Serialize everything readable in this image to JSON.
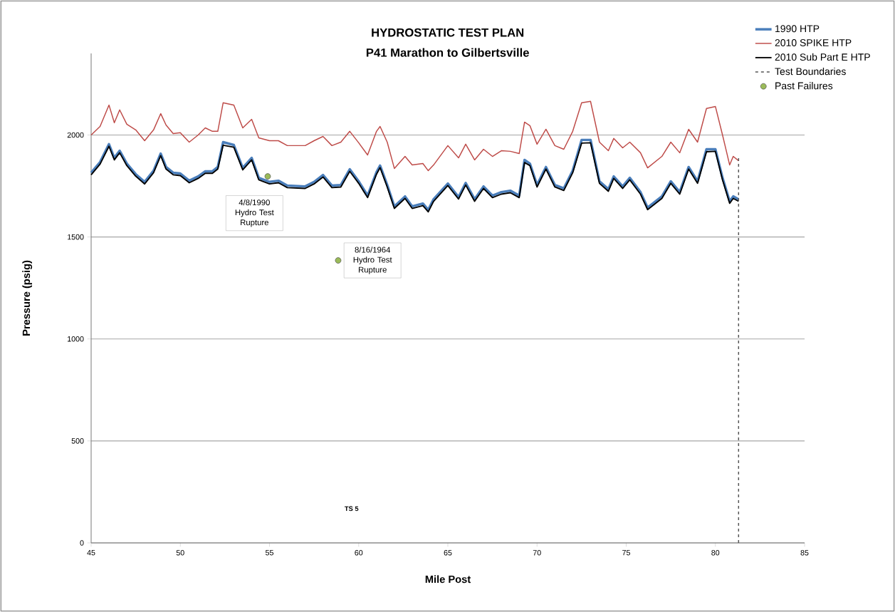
{
  "chart_data": {
    "type": "line",
    "title": "HYDROSTATIC TEST PLAN",
    "subtitle": "P41 Marathon to Gilbertsville",
    "xlabel": "Mile Post",
    "ylabel": "Pressure (psig)",
    "xlim": [
      45,
      85
    ],
    "ylim": [
      0,
      2400
    ],
    "xticks": [
      45,
      50,
      55,
      60,
      65,
      70,
      75,
      80,
      85
    ],
    "yticks": [
      0,
      500,
      1000,
      1500,
      2000
    ],
    "grid": "y",
    "legend": "top right",
    "marker": "none",
    "x": [
      45,
      45.5,
      46,
      46.3,
      46.6,
      47,
      47.5,
      48,
      48.5,
      48.9,
      49.2,
      49.6,
      50,
      50.5,
      51,
      51.4,
      51.8,
      52.1,
      52.4,
      53,
      53.5,
      54,
      54.4,
      55,
      55.5,
      56,
      57,
      57.5,
      58,
      58.5,
      59,
      59.5,
      60,
      60.5,
      61,
      61.2,
      61.6,
      62,
      62.6,
      63,
      63.6,
      63.9,
      64.2,
      65,
      65.6,
      66,
      66.5,
      67,
      67.5,
      68,
      68.5,
      69,
      69.3,
      69.6,
      70,
      70.5,
      71,
      71.5,
      72,
      72.5,
      73,
      73.5,
      74,
      74.3,
      74.8,
      75.2,
      75.8,
      76.2,
      77,
      77.5,
      78,
      78.5,
      79,
      79.5,
      80,
      80.4,
      80.8,
      81,
      81.3
    ],
    "series": [
      {
        "name": "1990 HTP",
        "color": "#4a7ebb",
        "values": [
          1815,
          1867,
          1955,
          1888,
          1923,
          1860,
          1808,
          1770,
          1825,
          1909,
          1843,
          1815,
          1811,
          1776,
          1797,
          1822,
          1822,
          1843,
          1965,
          1951,
          1839,
          1888,
          1790,
          1770,
          1776,
          1752,
          1748,
          1770,
          1804,
          1752,
          1755,
          1832,
          1773,
          1703,
          1818,
          1850,
          1755,
          1650,
          1699,
          1650,
          1664,
          1633,
          1685,
          1762,
          1696,
          1765,
          1685,
          1748,
          1703,
          1720,
          1727,
          1703,
          1878,
          1860,
          1755,
          1843,
          1755,
          1738,
          1825,
          1976,
          1976,
          1773,
          1734,
          1797,
          1748,
          1790,
          1720,
          1644,
          1699,
          1773,
          1720,
          1843,
          1773,
          1930,
          1930,
          1790,
          1675,
          1699,
          1685
        ]
      },
      {
        "name": "2010 SPIKE HTP",
        "color": "#be4b48",
        "values": [
          2000,
          2042,
          2147,
          2060,
          2123,
          2053,
          2025,
          1972,
          2025,
          2105,
          2049,
          2007,
          2011,
          1965,
          2000,
          2035,
          2018,
          2018,
          2158,
          2147,
          2035,
          2077,
          1986,
          1972,
          1972,
          1948,
          1948,
          1972,
          1993,
          1948,
          1965,
          2018,
          1962,
          1902,
          2018,
          2042,
          1965,
          1836,
          1895,
          1853,
          1860,
          1825,
          1853,
          1948,
          1888,
          1955,
          1878,
          1930,
          1895,
          1923,
          1920,
          1909,
          2063,
          2046,
          1955,
          2028,
          1948,
          1930,
          2018,
          2158,
          2165,
          1965,
          1923,
          1983,
          1937,
          1965,
          1913,
          1839,
          1895,
          1965,
          1913,
          2028,
          1965,
          2130,
          2140,
          2000,
          1853,
          1895,
          1874
        ]
      },
      {
        "name": "2010 Sub Part E HTP",
        "color": "#000000",
        "values": [
          1805,
          1857,
          1945,
          1878,
          1913,
          1850,
          1798,
          1760,
          1815,
          1899,
          1833,
          1805,
          1801,
          1766,
          1787,
          1812,
          1812,
          1833,
          1950,
          1940,
          1829,
          1878,
          1780,
          1760,
          1766,
          1742,
          1738,
          1760,
          1794,
          1742,
          1745,
          1822,
          1763,
          1693,
          1808,
          1840,
          1745,
          1640,
          1689,
          1640,
          1654,
          1623,
          1675,
          1752,
          1686,
          1755,
          1675,
          1738,
          1693,
          1710,
          1717,
          1693,
          1865,
          1850,
          1745,
          1833,
          1745,
          1728,
          1815,
          1960,
          1962,
          1763,
          1724,
          1787,
          1738,
          1780,
          1710,
          1634,
          1689,
          1763,
          1710,
          1833,
          1763,
          1918,
          1920,
          1780,
          1665,
          1689,
          1675
        ]
      },
      {
        "name": "Test Boundaries",
        "color": "#555555",
        "line_style": "dashed",
        "x": [
          81.3,
          81.3
        ],
        "values": [
          0,
          1900
        ]
      },
      {
        "name": "Past Failures",
        "type": "scatter",
        "marker": "circle",
        "color": "#9bbb59",
        "x": [
          54.9,
          58.85
        ],
        "values": [
          1797,
          1385
        ]
      }
    ],
    "annotations": [
      {
        "text": "4/8/1990 Hydro Test Rupture",
        "x": 54.9,
        "y": 1797
      },
      {
        "text": "8/16/1964 Hydro Test Rupture",
        "x": 58.85,
        "y": 1385
      },
      "TS 5"
    ]
  }
}
